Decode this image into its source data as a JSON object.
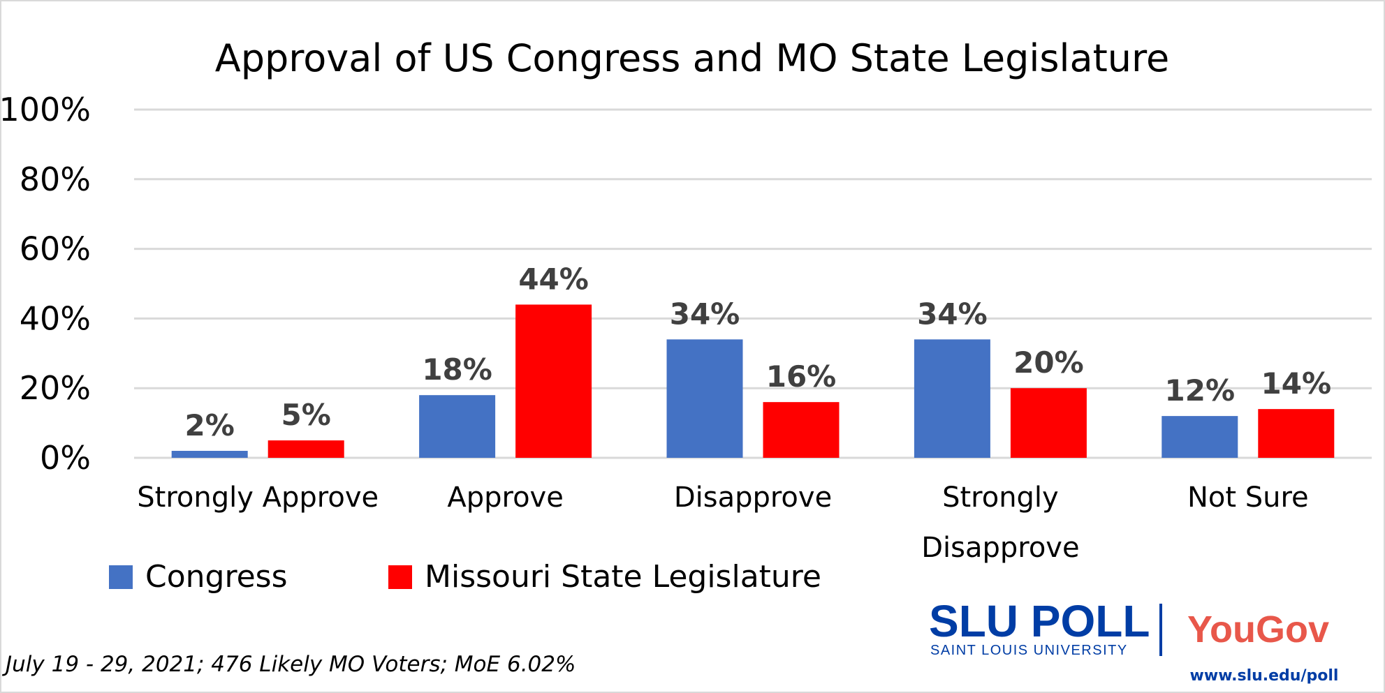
{
  "chart_data": {
    "type": "bar",
    "title": "Approval of US Congress and MO State Legislature",
    "categories": [
      "Strongly Approve",
      "Approve",
      "Disapprove",
      "Strongly Disapprove",
      "Not Sure"
    ],
    "series": [
      {
        "name": "Congress",
        "color": "#4472C4",
        "values": [
          2,
          18,
          34,
          34,
          12
        ],
        "labels": [
          "2%",
          "18%",
          "34%",
          "34%",
          "12%"
        ]
      },
      {
        "name": "Missouri State Legislature",
        "color": "#FF0000",
        "values": [
          5,
          44,
          16,
          20,
          14
        ],
        "labels": [
          "5%",
          "44%",
          "16%",
          "20%",
          "14%"
        ]
      }
    ],
    "ylim": [
      0,
      100
    ],
    "yticks": [
      "0%",
      "20%",
      "40%",
      "60%",
      "80%",
      "100%"
    ],
    "grid": true,
    "legend": "bottom-left",
    "footnote": "July 19 - 29, 2021; 476 Likely MO Voters; MoE 6.02%"
  },
  "logos": {
    "slu_poll": "SLU POLL",
    "slu_sub": "SAINT LOUIS UNIVERSITY",
    "yougov": "YouGov",
    "url": "www.slu.edu/poll"
  }
}
